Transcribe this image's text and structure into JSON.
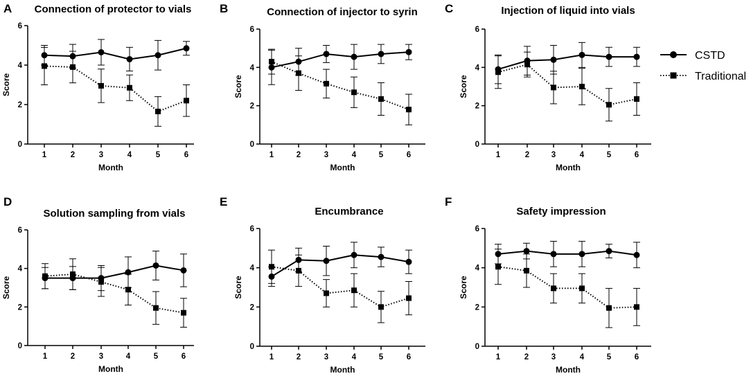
{
  "chart_data": [
    {
      "type": "line",
      "panel": "A",
      "title": "Connection of protector to vials",
      "xlabel": "Month",
      "ylabel": "Score",
      "x": [
        1,
        2,
        3,
        4,
        5,
        6
      ],
      "ylim": [
        0,
        6
      ],
      "yticks": [
        0,
        2,
        4,
        6
      ],
      "series": [
        {
          "name": "CSTD",
          "values": [
            4.5,
            4.45,
            4.65,
            4.3,
            4.5,
            4.85
          ],
          "errors": [
            0.5,
            0.6,
            0.65,
            0.6,
            0.75,
            0.35
          ]
        },
        {
          "name": "Traditional",
          "values": [
            3.95,
            3.9,
            2.95,
            2.85,
            1.65,
            2.2
          ],
          "errors": [
            0.95,
            0.8,
            0.85,
            0.65,
            0.75,
            0.8
          ]
        }
      ]
    },
    {
      "type": "line",
      "panel": "B",
      "title": "Connection of injector to syrin",
      "xlabel": "Month",
      "ylabel": "Score",
      "x": [
        1,
        2,
        3,
        4,
        5,
        6
      ],
      "ylim": [
        0,
        6
      ],
      "yticks": [
        0,
        2,
        4,
        6
      ],
      "series": [
        {
          "name": "CSTD",
          "values": [
            4.0,
            4.3,
            4.7,
            4.55,
            4.7,
            4.8
          ],
          "errors": [
            0.9,
            0.7,
            0.45,
            0.65,
            0.5,
            0.4
          ]
        },
        {
          "name": "Traditional",
          "values": [
            4.3,
            3.7,
            3.15,
            2.7,
            2.35,
            1.8
          ],
          "errors": [
            0.65,
            0.9,
            0.75,
            0.8,
            0.85,
            0.8
          ]
        }
      ]
    },
    {
      "type": "line",
      "panel": "C",
      "title": "Injection of liquid into vials",
      "xlabel": "Month",
      "ylabel": "Score",
      "x": [
        1,
        2,
        3,
        4,
        5,
        6
      ],
      "ylim": [
        0,
        6
      ],
      "yticks": [
        0,
        2,
        4,
        6
      ],
      "series": [
        {
          "name": "CSTD",
          "values": [
            3.9,
            4.35,
            4.4,
            4.65,
            4.55,
            4.55
          ],
          "errors": [
            0.75,
            0.75,
            0.75,
            0.65,
            0.5,
            0.5
          ]
        },
        {
          "name": "Traditional",
          "values": [
            3.75,
            4.15,
            2.95,
            3.0,
            2.05,
            2.35
          ],
          "errors": [
            0.85,
            0.65,
            0.85,
            0.95,
            0.85,
            0.85
          ]
        }
      ]
    },
    {
      "type": "line",
      "panel": "D",
      "title": "Solution sampling from vials",
      "xlabel": "Month",
      "ylabel": "Score",
      "x": [
        1,
        2,
        3,
        4,
        5,
        6
      ],
      "ylim": [
        0,
        6
      ],
      "yticks": [
        0,
        2,
        4,
        6
      ],
      "series": [
        {
          "name": "CSTD",
          "values": [
            3.5,
            3.5,
            3.5,
            3.8,
            4.15,
            3.9
          ],
          "errors": [
            0.55,
            0.6,
            0.65,
            0.8,
            0.75,
            0.85
          ]
        },
        {
          "name": "Traditional",
          "values": [
            3.6,
            3.7,
            3.3,
            2.9,
            1.95,
            1.7
          ],
          "errors": [
            0.65,
            0.8,
            0.75,
            0.8,
            0.85,
            0.75
          ]
        }
      ]
    },
    {
      "type": "line",
      "panel": "E",
      "title": "Encumbrance",
      "xlabel": "Month",
      "ylabel": "Score",
      "x": [
        1,
        2,
        3,
        4,
        5,
        6
      ],
      "ylim": [
        0,
        6
      ],
      "yticks": [
        0,
        2,
        4,
        6
      ],
      "series": [
        {
          "name": "CSTD",
          "values": [
            3.55,
            4.4,
            4.35,
            4.65,
            4.55,
            4.3
          ],
          "errors": [
            0.5,
            0.6,
            0.75,
            0.65,
            0.5,
            0.6
          ]
        },
        {
          "name": "Traditional",
          "values": [
            4.05,
            3.85,
            2.7,
            2.85,
            2.0,
            2.45
          ],
          "errors": [
            0.85,
            0.8,
            0.7,
            0.85,
            0.8,
            0.85
          ]
        }
      ]
    },
    {
      "type": "line",
      "panel": "F",
      "title": "Safety impression",
      "xlabel": "Month",
      "ylabel": "Score",
      "x": [
        1,
        2,
        3,
        4,
        5,
        6
      ],
      "ylim": [
        0,
        6
      ],
      "yticks": [
        0,
        2,
        4,
        6
      ],
      "series": [
        {
          "name": "CSTD",
          "values": [
            4.7,
            4.85,
            4.7,
            4.7,
            4.85,
            4.65
          ],
          "errors": [
            0.5,
            0.4,
            0.65,
            0.65,
            0.35,
            0.65
          ]
        },
        {
          "name": "Traditional",
          "values": [
            4.05,
            3.85,
            2.95,
            2.95,
            1.95,
            2.0
          ],
          "errors": [
            0.9,
            0.85,
            0.75,
            0.75,
            1.0,
            0.95
          ]
        }
      ]
    }
  ],
  "legend": {
    "items": [
      {
        "name": "CSTD",
        "style": "solid-circle"
      },
      {
        "name": "Traditional",
        "style": "dotted-square"
      }
    ]
  },
  "colors": {
    "ink": "#000000",
    "background": "#ffffff"
  }
}
